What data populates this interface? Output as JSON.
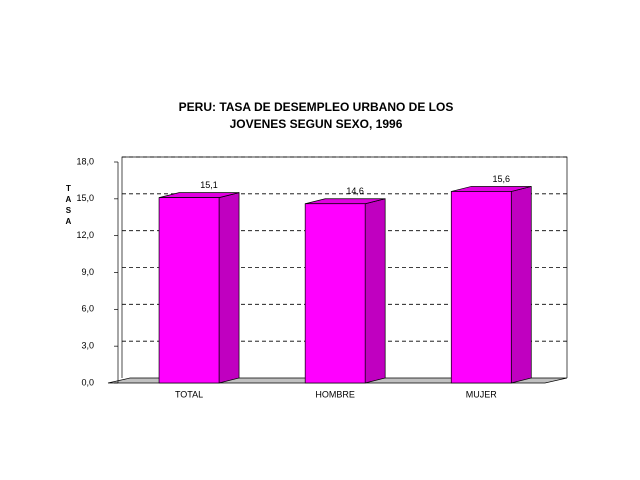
{
  "chart_data": {
    "type": "bar3d",
    "title": [
      "PERU: TASA DE DESEMPLEO URBANO DE LOS",
      "JOVENES SEGUN SEXO, 1996"
    ],
    "y_label": "TASA",
    "categories": [
      "TOTAL",
      "HOMBRE",
      "MUJER"
    ],
    "values": [
      15.1,
      14.6,
      15.6
    ],
    "value_labels": [
      "15,1",
      "14,6",
      "15,6"
    ],
    "color": "#ff00ff",
    "ylim": [
      0,
      18
    ],
    "yticks": [
      {
        "value": 0,
        "label": "0,0"
      },
      {
        "value": 3,
        "label": "3,0"
      },
      {
        "value": 6,
        "label": "6,0"
      },
      {
        "value": 9,
        "label": "9,0"
      },
      {
        "value": 12,
        "label": "12,0"
      },
      {
        "value": 15,
        "label": "15,0"
      },
      {
        "value": 18,
        "label": "18,0"
      }
    ],
    "grid": true
  }
}
